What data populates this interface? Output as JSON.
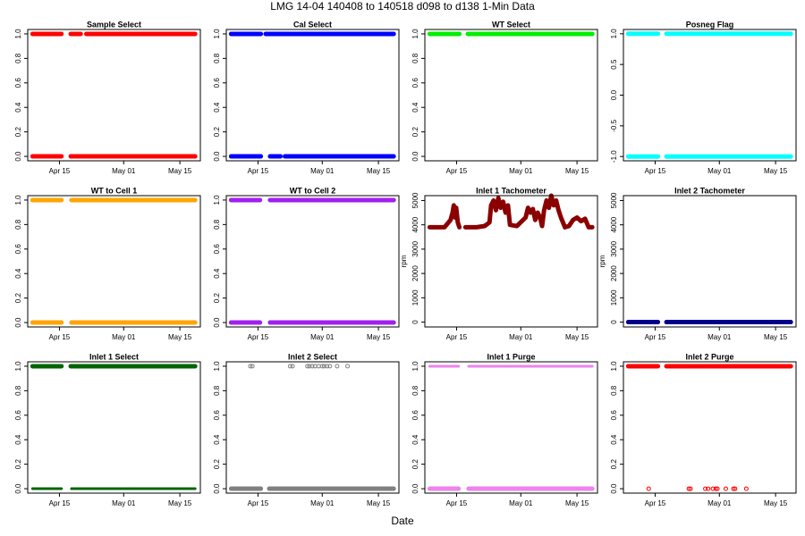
{
  "title": "LMG   14-04    140408 to 140518    d098 to d138   1-Min Data",
  "xlabel": "Date",
  "chart_data": [
    {
      "type": "scatter",
      "title": "Sample Select",
      "xlim": [
        97.1,
        140.1
      ],
      "ylim": [
        -0.036,
        1.036
      ],
      "xticks": [
        {
          "value": 105,
          "label": "Apr 15"
        },
        {
          "value": 121,
          "label": "May 01"
        },
        {
          "value": 135,
          "label": "May 15"
        }
      ],
      "yticks": [
        {
          "value": 0,
          "label": "0.0"
        },
        {
          "value": 0.2,
          "label": "0.2"
        },
        {
          "value": 0.4,
          "label": "0.4"
        },
        {
          "value": 0.6,
          "label": "0.6"
        },
        {
          "value": 0.8,
          "label": "0.8"
        },
        {
          "value": 1,
          "label": "1.0"
        }
      ],
      "series": [
        {
          "color": "#ff0000",
          "marker": "line",
          "x": [
            98.3,
            105.5,
            null,
            107.8,
            110.3,
            null,
            111.7,
            138.8
          ],
          "values": [
            1,
            1,
            null,
            1,
            1,
            null,
            1,
            1
          ]
        },
        {
          "color": "#ff0000",
          "marker": "line",
          "x": [
            98.3,
            105.5,
            null,
            107.8,
            138.8
          ],
          "values": [
            0,
            0,
            null,
            0,
            0
          ]
        }
      ]
    },
    {
      "type": "scatter",
      "title": "Cal Select",
      "xlim": [
        97.1,
        140.1
      ],
      "ylim": [
        -0.036,
        1.036
      ],
      "xticks": [
        {
          "value": 105,
          "label": "Apr 15"
        },
        {
          "value": 121,
          "label": "May 01"
        },
        {
          "value": 135,
          "label": "May 15"
        }
      ],
      "yticks": [
        {
          "value": 0,
          "label": "0.0"
        },
        {
          "value": 0.2,
          "label": "0.2"
        },
        {
          "value": 0.4,
          "label": "0.4"
        },
        {
          "value": 0.6,
          "label": "0.6"
        },
        {
          "value": 0.8,
          "label": "0.8"
        },
        {
          "value": 1,
          "label": "1.0"
        }
      ],
      "series": [
        {
          "color": "#0000ff",
          "marker": "line",
          "x": [
            98.3,
            105.7,
            null,
            106.9,
            138.8
          ],
          "values": [
            1,
            1,
            null,
            1,
            1
          ]
        },
        {
          "color": "#0000ff",
          "marker": "line",
          "x": [
            98.3,
            105.7,
            null,
            108,
            110.6,
            null,
            111.7,
            138.8
          ],
          "values": [
            0,
            0,
            null,
            0,
            0,
            null,
            0,
            0
          ]
        }
      ]
    },
    {
      "type": "scatter",
      "title": "WT Select",
      "xlim": [
        97.1,
        140.1
      ],
      "ylim": [
        -0.036,
        1.036
      ],
      "xticks": [
        {
          "value": 105,
          "label": "Apr 15"
        },
        {
          "value": 121,
          "label": "May 01"
        },
        {
          "value": 135,
          "label": "May 15"
        }
      ],
      "yticks": [
        {
          "value": 0,
          "label": "0.0"
        },
        {
          "value": 0.2,
          "label": "0.2"
        },
        {
          "value": 0.4,
          "label": "0.4"
        },
        {
          "value": 0.6,
          "label": "0.6"
        },
        {
          "value": 0.8,
          "label": "0.8"
        },
        {
          "value": 1,
          "label": "1.0"
        }
      ],
      "series": [
        {
          "color": "#00ee00",
          "marker": "line",
          "x": [
            98.3,
            105.7,
            null,
            107.8,
            138.8
          ],
          "values": [
            1,
            1,
            null,
            1,
            1
          ]
        }
      ]
    },
    {
      "type": "scatter",
      "title": "Posneg Flag",
      "xlim": [
        97.1,
        140.1
      ],
      "ylim": [
        -1.07,
        1.07
      ],
      "xticks": [
        {
          "value": 105,
          "label": "Apr 15"
        },
        {
          "value": 121,
          "label": "May 01"
        },
        {
          "value": 135,
          "label": "May 15"
        }
      ],
      "yticks": [
        {
          "value": -1,
          "label": "-1.0"
        },
        {
          "value": -0.5,
          "label": "-0.5"
        },
        {
          "value": 0,
          "label": "0.0"
        },
        {
          "value": 0.5,
          "label": "0.5"
        },
        {
          "value": 1,
          "label": "1.0"
        }
      ],
      "series": [
        {
          "color": "#00ffff",
          "marker": "line",
          "x": [
            98.3,
            105.7,
            null,
            107.8,
            138.8
          ],
          "values": [
            1,
            1,
            null,
            1,
            1
          ]
        },
        {
          "color": "#00ffff",
          "marker": "line",
          "x": [
            98.3,
            105.7,
            null,
            107.8,
            138.8
          ],
          "values": [
            -1,
            -1,
            null,
            -1,
            -1
          ]
        }
      ]
    },
    {
      "type": "scatter",
      "title": "WT to Cell 1",
      "xlim": [
        97.1,
        140.1
      ],
      "ylim": [
        -0.036,
        1.036
      ],
      "xticks": [
        {
          "value": 105,
          "label": "Apr 15"
        },
        {
          "value": 121,
          "label": "May 01"
        },
        {
          "value": 135,
          "label": "May 15"
        }
      ],
      "yticks": [
        {
          "value": 0,
          "label": "0.0"
        },
        {
          "value": 0.2,
          "label": "0.2"
        },
        {
          "value": 0.4,
          "label": "0.4"
        },
        {
          "value": 0.6,
          "label": "0.6"
        },
        {
          "value": 0.8,
          "label": "0.8"
        },
        {
          "value": 1,
          "label": "1.0"
        }
      ],
      "series": [
        {
          "color": "#ffa500",
          "marker": "line",
          "x": [
            98.3,
            105.5,
            null,
            108,
            138.8
          ],
          "values": [
            1,
            1,
            null,
            1,
            1
          ]
        },
        {
          "color": "#ffa500",
          "marker": "line",
          "x": [
            98.3,
            105.5,
            null,
            108,
            138.8
          ],
          "values": [
            0,
            0,
            null,
            0,
            0
          ]
        }
      ]
    },
    {
      "type": "scatter",
      "title": "WT to Cell 2",
      "xlim": [
        97.1,
        140.1
      ],
      "ylim": [
        -0.036,
        1.036
      ],
      "xticks": [
        {
          "value": 105,
          "label": "Apr 15"
        },
        {
          "value": 121,
          "label": "May 01"
        },
        {
          "value": 135,
          "label": "May 15"
        }
      ],
      "yticks": [
        {
          "value": 0,
          "label": "0.0"
        },
        {
          "value": 0.2,
          "label": "0.2"
        },
        {
          "value": 0.4,
          "label": "0.4"
        },
        {
          "value": 0.6,
          "label": "0.6"
        },
        {
          "value": 0.8,
          "label": "0.8"
        },
        {
          "value": 1,
          "label": "1.0"
        }
      ],
      "series": [
        {
          "color": "#a020f0",
          "marker": "line",
          "x": [
            98.3,
            105.5,
            null,
            108,
            138.8
          ],
          "values": [
            1,
            1,
            null,
            1,
            1
          ]
        },
        {
          "color": "#a020f0",
          "marker": "line",
          "x": [
            98.3,
            105.5,
            null,
            108,
            138.8
          ],
          "values": [
            0,
            0,
            null,
            0,
            0
          ]
        }
      ]
    },
    {
      "type": "scatter",
      "title": "Inlet 1 Tachometer",
      "ylabel": "rpm",
      "xlim": [
        97.1,
        140.1
      ],
      "ylim": [
        -200,
        5200
      ],
      "xticks": [
        {
          "value": 105,
          "label": "Apr 15"
        },
        {
          "value": 121,
          "label": "May 01"
        },
        {
          "value": 135,
          "label": "May 15"
        }
      ],
      "yticks": [
        0,
        1000,
        2000,
        3000,
        4000,
        5000
      ],
      "series": [
        {
          "color": "#8b0000",
          "marker": "line",
          "x": [
            98.3,
            102,
            103.5,
            104,
            104.3,
            104.6,
            104.9,
            105.3,
            105.7,
            null,
            107.2,
            110,
            112,
            113.2,
            113.6,
            114.2,
            114.8,
            115.4,
            116,
            116.6,
            117.2,
            117.8,
            118.3,
            120,
            122.2,
            122.8,
            123.4,
            124,
            124.6,
            125.2,
            125.8,
            126.3,
            126.8,
            127.4,
            128,
            128.6,
            129.2,
            129.8,
            130.4,
            131,
            132,
            133,
            134,
            135,
            136,
            137,
            137.9,
            138.8
          ],
          "values": [
            3900,
            3900,
            4200,
            4500,
            4800,
            4300,
            4700,
            4100,
            3900,
            null,
            3900,
            3900,
            3950,
            4100,
            4800,
            5000,
            4600,
            5100,
            4700,
            4950,
            4500,
            4800,
            4000,
            3950,
            4300,
            4700,
            4500,
            4650,
            4200,
            4500,
            4300,
            3950,
            4600,
            5000,
            4700,
            5200,
            4800,
            5000,
            4600,
            4300,
            3900,
            3950,
            4200,
            4300,
            4150,
            4250,
            3900,
            3900
          ]
        }
      ]
    },
    {
      "type": "scatter",
      "title": "Inlet 2 Tachometer",
      "ylabel": "rpm",
      "xlim": [
        97.1,
        140.1
      ],
      "ylim": [
        -200,
        5200
      ],
      "xticks": [
        {
          "value": 105,
          "label": "Apr 15"
        },
        {
          "value": 121,
          "label": "May 01"
        },
        {
          "value": 135,
          "label": "May 15"
        }
      ],
      "yticks": [
        0,
        1000,
        2000,
        3000,
        4000,
        5000
      ],
      "series": [
        {
          "color": "#00008b",
          "marker": "line",
          "x": [
            98.3,
            105.7,
            null,
            107.8,
            138.8
          ],
          "values": [
            0,
            0,
            null,
            0,
            0
          ]
        }
      ]
    },
    {
      "type": "scatter",
      "title": "Inlet 1 Select",
      "xlim": [
        97.1,
        140.1
      ],
      "ylim": [
        -0.036,
        1.036
      ],
      "xticks": [
        {
          "value": 105,
          "label": "Apr 15"
        },
        {
          "value": 121,
          "label": "May 01"
        },
        {
          "value": 135,
          "label": "May 15"
        }
      ],
      "yticks": [
        {
          "value": 0,
          "label": "0.0"
        },
        {
          "value": 0.2,
          "label": "0.2"
        },
        {
          "value": 0.4,
          "label": "0.4"
        },
        {
          "value": 0.6,
          "label": "0.6"
        },
        {
          "value": 0.8,
          "label": "0.8"
        },
        {
          "value": 1,
          "label": "1.0"
        }
      ],
      "series": [
        {
          "color": "#006400",
          "marker": "line",
          "x": [
            98.3,
            105.5,
            null,
            107.8,
            138.8
          ],
          "values": [
            1,
            1,
            null,
            1,
            1
          ]
        },
        {
          "color": "#006400",
          "marker": "open-line",
          "x": [
            98.3,
            105.5,
            null,
            108,
            138.8
          ],
          "values": [
            0,
            0,
            null,
            0,
            0
          ]
        }
      ]
    },
    {
      "type": "scatter",
      "title": "Inlet 2 Select",
      "xlim": [
        97.1,
        140.1
      ],
      "ylim": [
        -0.036,
        1.036
      ],
      "xticks": [
        {
          "value": 105,
          "label": "Apr 15"
        },
        {
          "value": 121,
          "label": "May 01"
        },
        {
          "value": 135,
          "label": "May 15"
        }
      ],
      "yticks": [
        {
          "value": 0,
          "label": "0.0"
        },
        {
          "value": 0.2,
          "label": "0.2"
        },
        {
          "value": 0.4,
          "label": "0.4"
        },
        {
          "value": 0.6,
          "label": "0.6"
        },
        {
          "value": 0.8,
          "label": "0.8"
        },
        {
          "value": 1,
          "label": "1.0"
        }
      ],
      "series": [
        {
          "color": "#808080",
          "marker": "line",
          "x": [
            98.3,
            105.7,
            null,
            107.8,
            138.8
          ],
          "values": [
            0,
            0,
            null,
            0,
            0
          ]
        },
        {
          "color": "#808080",
          "marker": "circle",
          "x": [
            103.1,
            103.6,
            113,
            113.6,
            117.3,
            117.8,
            118.5,
            119.2,
            120.1,
            121,
            121.5,
            122.2,
            122.9,
            124.7,
            127.3
          ],
          "values": [
            1,
            1,
            1,
            1,
            1,
            1,
            1,
            1,
            1,
            1,
            1,
            1,
            1,
            1,
            1
          ]
        }
      ]
    },
    {
      "type": "scatter",
      "title": "Inlet 1 Purge",
      "xlim": [
        97.1,
        140.1
      ],
      "ylim": [
        -0.036,
        1.036
      ],
      "xticks": [
        {
          "value": 105,
          "label": "Apr 15"
        },
        {
          "value": 121,
          "label": "May 01"
        },
        {
          "value": 135,
          "label": "May 15"
        }
      ],
      "yticks": [
        {
          "value": 0,
          "label": "0.0"
        },
        {
          "value": 0.2,
          "label": "0.2"
        },
        {
          "value": 0.4,
          "label": "0.4"
        },
        {
          "value": 0.6,
          "label": "0.6"
        },
        {
          "value": 0.8,
          "label": "0.8"
        },
        {
          "value": 1,
          "label": "1.0"
        }
      ],
      "series": [
        {
          "color": "#ee82ee",
          "marker": "open-line",
          "x": [
            98.3,
            105.5,
            null,
            108,
            138.8
          ],
          "values": [
            1,
            1,
            null,
            1,
            1
          ]
        },
        {
          "color": "#ee82ee",
          "marker": "line",
          "x": [
            98.3,
            105.5,
            null,
            108,
            138.8
          ],
          "values": [
            0,
            0,
            null,
            0,
            0
          ]
        }
      ]
    },
    {
      "type": "scatter",
      "title": "Inlet 2 Purge",
      "xlim": [
        97.1,
        140.1
      ],
      "ylim": [
        -0.036,
        1.036
      ],
      "xticks": [
        {
          "value": 105,
          "label": "Apr 15"
        },
        {
          "value": 121,
          "label": "May 01"
        },
        {
          "value": 135,
          "label": "May 15"
        }
      ],
      "yticks": [
        {
          "value": 0,
          "label": "0.0"
        },
        {
          "value": 0.2,
          "label": "0.2"
        },
        {
          "value": 0.4,
          "label": "0.4"
        },
        {
          "value": 0.6,
          "label": "0.6"
        },
        {
          "value": 0.8,
          "label": "0.8"
        },
        {
          "value": 1,
          "label": "1.0"
        }
      ],
      "series": [
        {
          "color": "#ff0000",
          "marker": "line",
          "x": [
            98.3,
            105.7,
            null,
            107.8,
            138.8
          ],
          "values": [
            1,
            1,
            null,
            1,
            1
          ]
        },
        {
          "color": "#ff0000",
          "marker": "circle",
          "x": [
            103.4,
            113.4,
            113.8,
            117.5,
            118.2,
            119.4,
            120.1,
            120.5,
            122.6,
            124.5,
            124.9,
            127.7
          ],
          "values": [
            0,
            0,
            0,
            0,
            0,
            0,
            0,
            0,
            0,
            0,
            0,
            0
          ]
        }
      ]
    }
  ]
}
